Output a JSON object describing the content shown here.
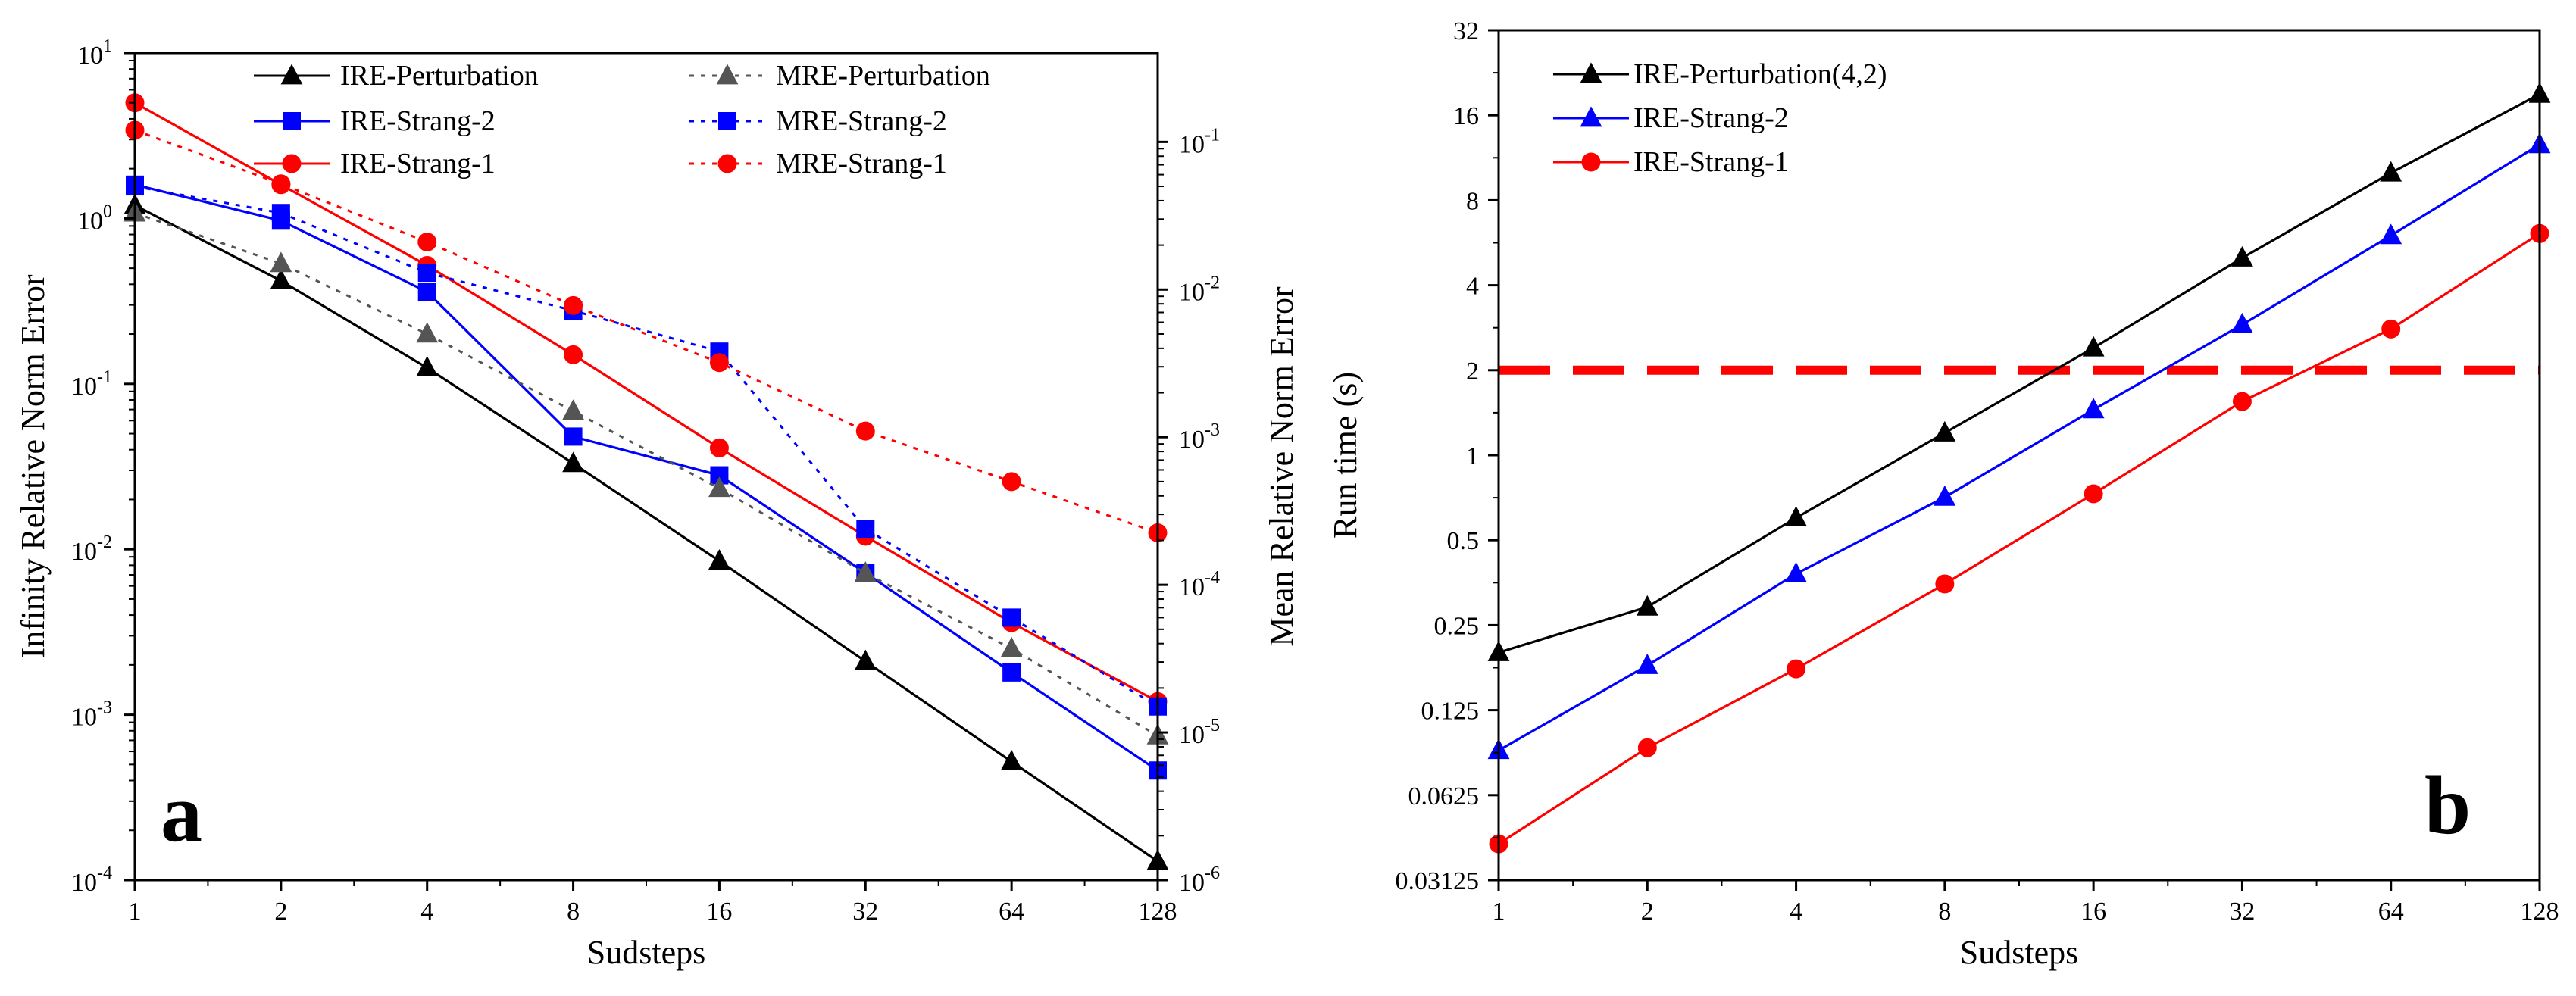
{
  "chart_data": [
    {
      "panel": "a",
      "type": "line",
      "title": "",
      "xlabel": "Sudsteps",
      "ylabel": "Infinity Relative Norm Error",
      "y2label": "Mean Relative Norm Error",
      "xscale": "log2",
      "yscale": "log10",
      "y2scale": "log10",
      "x": [
        1,
        2,
        4,
        8,
        16,
        32,
        64,
        128
      ],
      "xticks": [
        "1",
        "2",
        "4",
        "8",
        "16",
        "32",
        "64",
        "128"
      ],
      "ylim": [
        0.0001,
        10
      ],
      "y2lim": [
        1e-06,
        0.4
      ],
      "yticks": [
        {
          "base": "10",
          "exp": "-4",
          "v": 0.0001
        },
        {
          "base": "10",
          "exp": "-3",
          "v": 0.001
        },
        {
          "base": "10",
          "exp": "-2",
          "v": 0.01
        },
        {
          "base": "10",
          "exp": "-1",
          "v": 0.1
        },
        {
          "base": "10",
          "exp": "0",
          "v": 1
        },
        {
          "base": "10",
          "exp": "1",
          "v": 10
        }
      ],
      "y2ticks": [
        {
          "base": "10",
          "exp": "-6",
          "v": 1e-06
        },
        {
          "base": "10",
          "exp": "-5",
          "v": 1e-05
        },
        {
          "base": "10",
          "exp": "-4",
          "v": 0.0001
        },
        {
          "base": "10",
          "exp": "-3",
          "v": 0.001
        },
        {
          "base": "10",
          "exp": "-2",
          "v": 0.01
        },
        {
          "base": "10",
          "exp": "-1",
          "v": 0.1
        }
      ],
      "legend_position": "top",
      "series": [
        {
          "name": "IRE-Perturbation",
          "axis": "left",
          "color": "#000000",
          "marker": "triangle",
          "style": "solid",
          "values": [
            1.2,
            0.42,
            0.125,
            0.033,
            0.0085,
            0.0021,
            0.00052,
            0.00013
          ]
        },
        {
          "name": "IRE-Strang-2",
          "axis": "left",
          "color": "#0000ff",
          "marker": "square",
          "style": "solid",
          "values": [
            1.6,
            0.97,
            0.36,
            0.048,
            0.028,
            0.0072,
            0.0018,
            0.00046
          ]
        },
        {
          "name": "IRE-Strang-1",
          "axis": "left",
          "color": "#ff0000",
          "marker": "circle",
          "style": "solid",
          "values": [
            5.0,
            1.6,
            0.52,
            0.15,
            0.041,
            0.012,
            0.0036,
            0.0012
          ]
        },
        {
          "name": "MRE-Perturbation",
          "axis": "right",
          "color": "#555555",
          "marker": "triangle",
          "style": "dotted",
          "values": [
            0.033,
            0.015,
            0.005,
            0.0015,
            0.00045,
            0.00012,
            3.7e-05,
            9.5e-06
          ]
        },
        {
          "name": "MRE-Strang-2",
          "axis": "right",
          "color": "#0000ff",
          "marker": "square",
          "style": "dotted",
          "values": [
            0.05,
            0.033,
            0.013,
            0.0072,
            0.0038,
            0.00024,
            6e-05,
            1.5e-05
          ]
        },
        {
          "name": "MRE-Strang-1",
          "axis": "right",
          "color": "#ff0000",
          "marker": "circle",
          "style": "dotted",
          "values": [
            0.12,
            0.052,
            0.021,
            0.0078,
            0.0032,
            0.0011,
            0.0005,
            0.000225
          ]
        }
      ]
    },
    {
      "panel": "b",
      "type": "line",
      "title": "",
      "xlabel": "Sudsteps",
      "ylabel": "Run time (s)",
      "xscale": "log2",
      "yscale": "log2",
      "x": [
        1,
        2,
        4,
        8,
        16,
        32,
        64,
        128
      ],
      "xticks": [
        "1",
        "2",
        "4",
        "8",
        "16",
        "32",
        "64",
        "128"
      ],
      "ylim": [
        0.03125,
        32
      ],
      "yticks": [
        "0.03125",
        "0.0625",
        "0.125",
        "0.25",
        "0.5",
        "1",
        "2",
        "4",
        "8",
        "16",
        "32"
      ],
      "threshold": {
        "value": 2,
        "color": "#ff0000",
        "style": "dashed"
      },
      "legend_position": "top-left",
      "series": [
        {
          "name": "IRE-Perturbation(4,2)",
          "color": "#000000",
          "marker": "triangle",
          "values": [
            0.2,
            0.29,
            0.6,
            1.2,
            2.4,
            5.0,
            10.0,
            19.0
          ]
        },
        {
          "name": "IRE-Strang-2",
          "color": "#0000ff",
          "marker": "triangle",
          "values": [
            0.09,
            0.18,
            0.38,
            0.71,
            1.45,
            2.9,
            6.0,
            12.6
          ]
        },
        {
          "name": "IRE-Strang-1",
          "color": "#ff0000",
          "marker": "circle",
          "values": [
            0.042,
            0.092,
            0.175,
            0.35,
            0.73,
            1.55,
            2.8,
            6.1
          ]
        }
      ]
    }
  ]
}
